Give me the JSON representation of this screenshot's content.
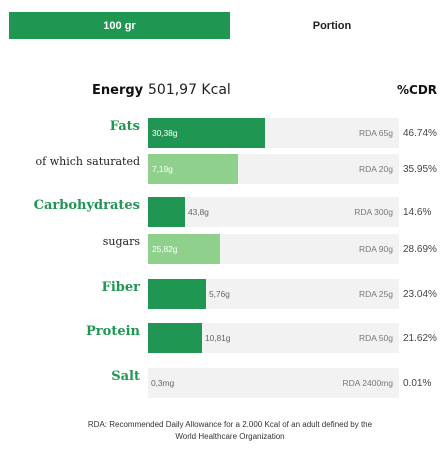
{
  "tabs": {
    "active": "100 gr",
    "inactive": "Portion"
  },
  "energy": {
    "label": "Energy",
    "value": "501,97 Kcal"
  },
  "cdr_header": "%CDR",
  "colors": {
    "dark_bar": "#1f9651",
    "light_bar": "#8fd18c",
    "track": "#f2f2f2"
  },
  "nutrients": [
    {
      "label": "Fats",
      "style": "main",
      "amount": "30,38g",
      "rda": "RDA 65g",
      "pct": "46.74%",
      "fraction": 0.4674
    },
    {
      "label": "of which saturated",
      "style": "sub",
      "amount": "7,19g",
      "rda": "RDA 20g",
      "pct": "35.95%",
      "fraction": 0.3595
    },
    {
      "label": "Carbohydrates",
      "style": "main",
      "amount": "43,8g",
      "rda": "RDA 300g",
      "pct": "14.6%",
      "fraction": 0.146
    },
    {
      "label": "sugars",
      "style": "sub",
      "amount": "25,82g",
      "rda": "RDA 90g",
      "pct": "28.69%",
      "fraction": 0.2869
    },
    {
      "label": "Fiber",
      "style": "main",
      "amount": "5,76g",
      "rda": "RDA 25g",
      "pct": "23.04%",
      "fraction": 0.2304
    },
    {
      "label": "Protein",
      "style": "main",
      "amount": "10,81g",
      "rda": "RDA 50g",
      "pct": "21.62%",
      "fraction": 0.2162
    },
    {
      "label": "Salt",
      "style": "main",
      "amount": "0,3mg",
      "rda": "RDA 2400mg",
      "pct": "0.01%",
      "fraction": 0.0001
    }
  ],
  "footnote": {
    "line1": "RDA: Recommended Daily Allowance for a 2.000 Kcal of an adult defined by the",
    "line2": "World Healthcare Organization"
  }
}
